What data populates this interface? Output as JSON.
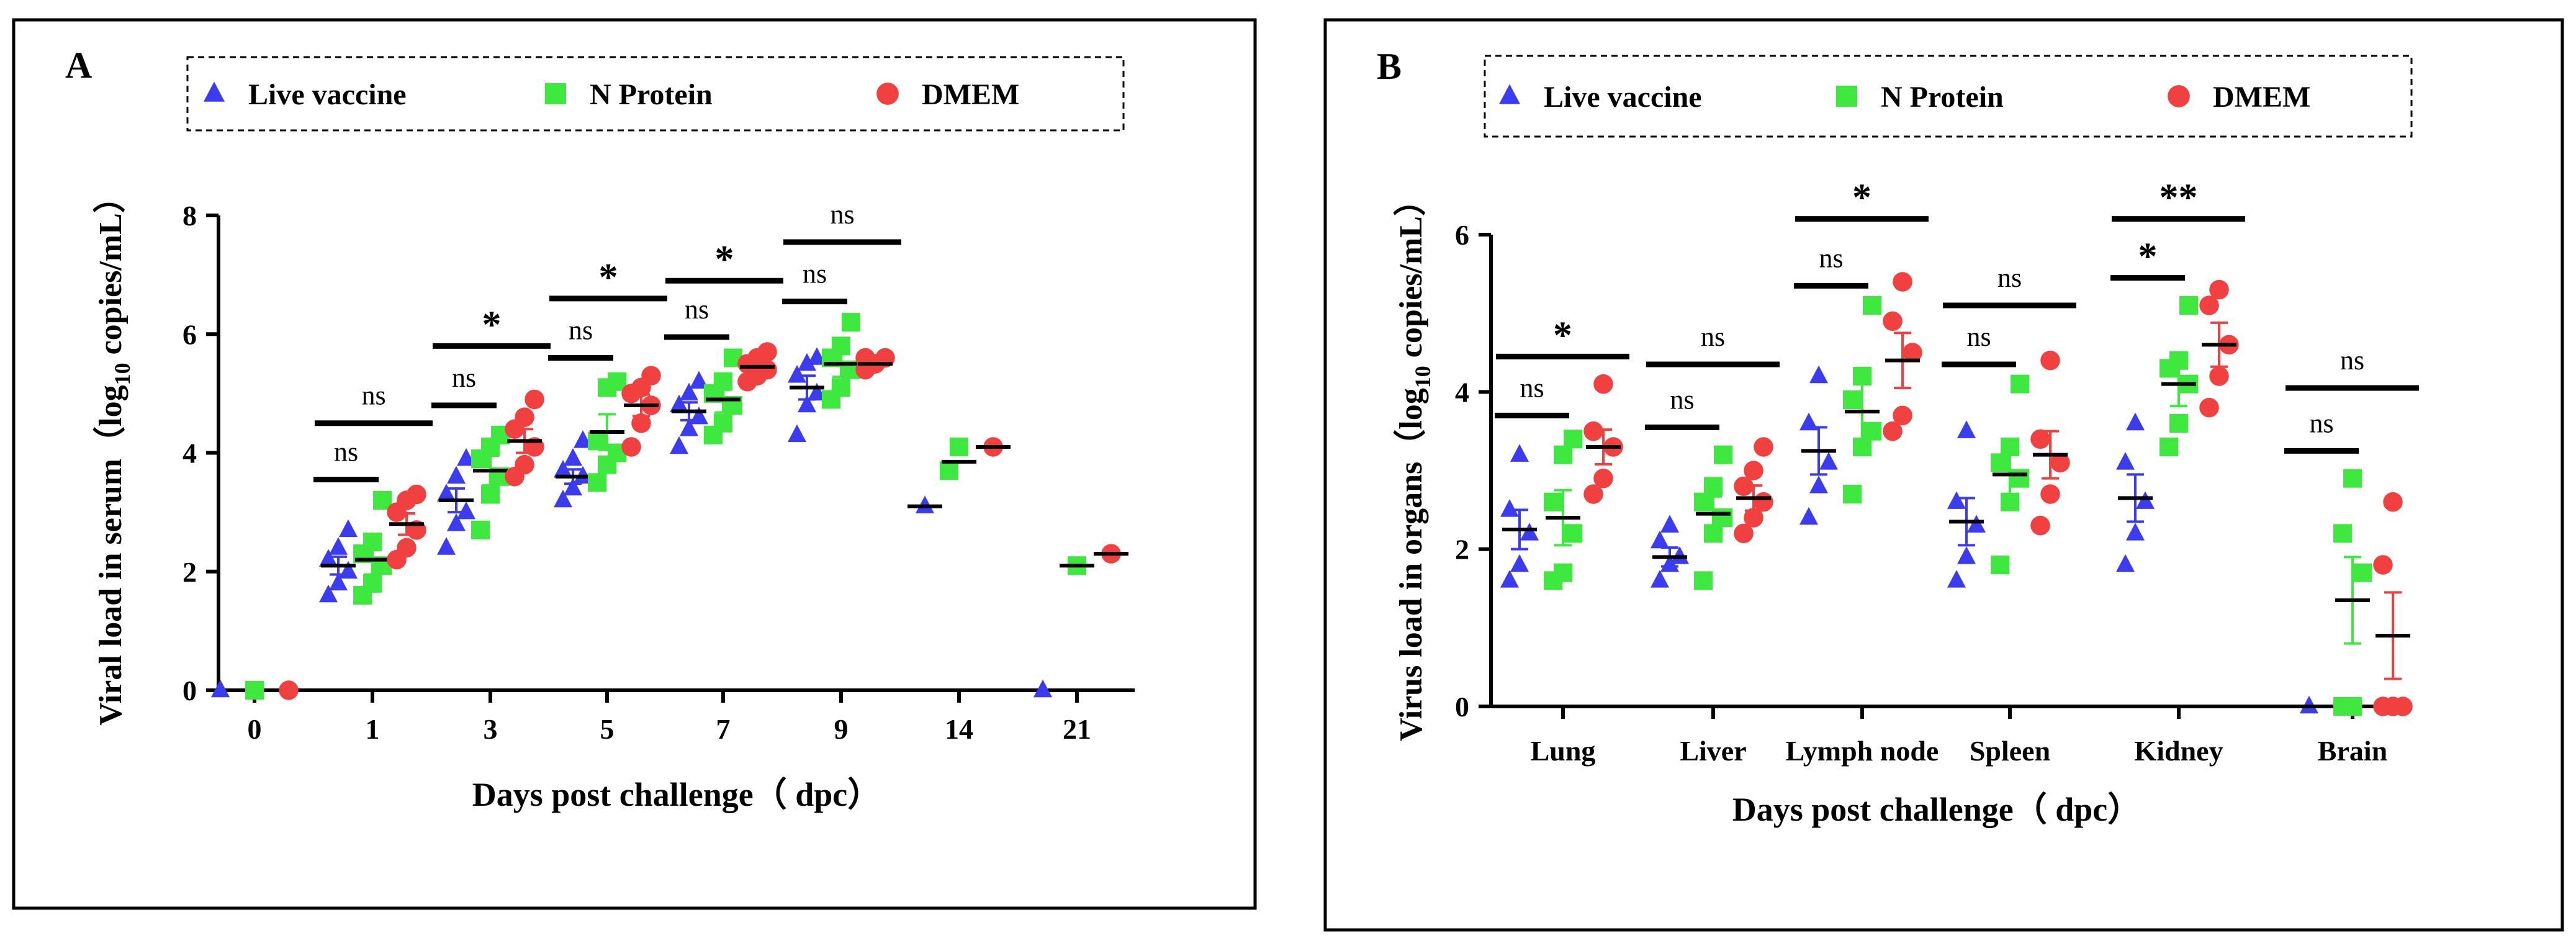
{
  "colors": {
    "live": "#3b3bf0",
    "nprot": "#3fe83f",
    "dmem": "#f04040",
    "axis": "#000000"
  },
  "chart_data": [
    {
      "type": "scatter",
      "panel_label": "A",
      "ylabel_pre": "Viral load in serum（log",
      "ylabel_sub": "10",
      "ylabel_post": " copies/mL）",
      "xlabel": "Days post challenge（ dpc）",
      "ylim": [
        0,
        8
      ],
      "yticks": [
        "0",
        "2",
        "4",
        "6",
        "8"
      ],
      "categories": [
        "0",
        "1",
        "3",
        "5",
        "7",
        "9",
        "14",
        "21"
      ],
      "legend": [
        "Live vaccine",
        "N Protein",
        "DMEM"
      ],
      "series": [
        {
          "name": "Live vaccine",
          "marker": "triangle",
          "color": "#3b3bf0",
          "points": [
            [
              0,
              [
                0
              ]
            ],
            [
              1,
              [
                1.6,
                1.8,
                2.0,
                2.2,
                2.4,
                2.7
              ]
            ],
            [
              2,
              [
                2.4,
                2.8,
                3.0,
                3.3,
                3.6,
                3.9
              ]
            ],
            [
              3,
              [
                3.2,
                3.4,
                3.6,
                3.7,
                3.9,
                4.2
              ]
            ],
            [
              4,
              [
                4.1,
                4.4,
                4.6,
                4.8,
                5.0,
                5.2
              ]
            ],
            [
              5,
              [
                4.3,
                4.8,
                5.0,
                5.3,
                5.5,
                5.6
              ]
            ],
            [
              6,
              [
                3.1
              ]
            ],
            [
              7,
              [
                0
              ]
            ]
          ],
          "means": [
            [
              1,
              2.1
            ],
            [
              2,
              3.2
            ],
            [
              3,
              3.6
            ],
            [
              4,
              4.7
            ],
            [
              5,
              5.1
            ],
            [
              6,
              3.1
            ]
          ],
          "sems": [
            [
              1,
              0.15
            ],
            [
              2,
              0.2
            ],
            [
              3,
              0.12
            ],
            [
              4,
              0.15
            ],
            [
              5,
              0.2
            ]
          ]
        },
        {
          "name": "N Protein",
          "marker": "square",
          "color": "#3fe83f",
          "points": [
            [
              0,
              [
                0
              ]
            ],
            [
              1,
              [
                1.6,
                1.8,
                2.1,
                2.3,
                2.5,
                3.2
              ]
            ],
            [
              2,
              [
                2.7,
                3.3,
                3.6,
                3.9,
                4.1,
                4.3
              ]
            ],
            [
              3,
              [
                3.5,
                3.8,
                4.0,
                4.2,
                5.1,
                5.2
              ]
            ],
            [
              4,
              [
                4.3,
                4.5,
                4.8,
                5.0,
                5.2,
                5.6
              ]
            ],
            [
              5,
              [
                4.9,
                5.1,
                5.4,
                5.6,
                5.8,
                6.2
              ]
            ],
            [
              6,
              [
                3.7,
                4.1
              ]
            ],
            [
              7,
              [
                2.1
              ]
            ]
          ],
          "means": [
            [
              1,
              2.2
            ],
            [
              2,
              3.7
            ],
            [
              3,
              4.35
            ],
            [
              4,
              4.9
            ],
            [
              5,
              5.5
            ],
            [
              6,
              3.85
            ],
            [
              7,
              2.1
            ]
          ],
          "sems": [
            [
              1,
              0.25
            ],
            [
              2,
              0.25
            ],
            [
              3,
              0.3
            ],
            [
              4,
              0.22
            ],
            [
              5,
              0.22
            ]
          ]
        },
        {
          "name": "DMEM",
          "marker": "circle",
          "color": "#f04040",
          "points": [
            [
              0,
              [
                0
              ]
            ],
            [
              1,
              [
                2.2,
                2.4,
                2.7,
                3.0,
                3.2,
                3.3
              ]
            ],
            [
              2,
              [
                3.6,
                3.8,
                4.1,
                4.4,
                4.6,
                4.9
              ]
            ],
            [
              3,
              [
                4.1,
                4.5,
                4.8,
                5.0,
                5.1,
                5.3
              ]
            ],
            [
              4,
              [
                5.2,
                5.3,
                5.4,
                5.5,
                5.6,
                5.7
              ]
            ],
            [
              5,
              [
                5.4,
                5.5,
                5.6,
                5.6
              ]
            ],
            [
              6,
              [
                4.1
              ]
            ],
            [
              7,
              [
                2.3
              ]
            ]
          ],
          "means": [
            [
              1,
              2.8
            ],
            [
              2,
              4.2
            ],
            [
              3,
              4.8
            ],
            [
              4,
              5.45
            ],
            [
              5,
              5.5
            ],
            [
              6,
              4.1
            ],
            [
              7,
              2.3
            ]
          ],
          "sems": [
            [
              1,
              0.18
            ],
            [
              2,
              0.2
            ],
            [
              3,
              0.18
            ],
            [
              4,
              0.08
            ],
            [
              5,
              0.05
            ]
          ]
        }
      ],
      "annotations": [
        {
          "cat": 1,
          "from": 0,
          "to": 0,
          "y": 3.55,
          "label": "ns"
        },
        {
          "cat": 1,
          "from": 0,
          "to": 1,
          "y": 4.5,
          "label": "ns"
        },
        {
          "cat": 2,
          "from": 0,
          "to": 0,
          "y": 4.8,
          "label": "ns"
        },
        {
          "cat": 2,
          "from": 0,
          "to": 1,
          "y": 5.8,
          "label": "*"
        },
        {
          "cat": 3,
          "from": 0,
          "to": 0,
          "y": 5.6,
          "label": "ns"
        },
        {
          "cat": 3,
          "from": 0,
          "to": 1,
          "y": 6.6,
          "label": "*"
        },
        {
          "cat": 4,
          "from": 0,
          "to": 0,
          "y": 5.95,
          "label": "ns"
        },
        {
          "cat": 4,
          "from": 0,
          "to": 1,
          "y": 6.9,
          "label": "*"
        },
        {
          "cat": 5,
          "from": 0,
          "to": 0,
          "y": 6.55,
          "label": "ns"
        },
        {
          "cat": 5,
          "from": 0,
          "to": 1,
          "y": 7.55,
          "label": "ns"
        }
      ]
    },
    {
      "type": "scatter",
      "panel_label": "B",
      "ylabel_pre": "Virus load in organs（log",
      "ylabel_sub": "10",
      "ylabel_post": " copies/mL）",
      "xlabel": "Days post challenge（ dpc）",
      "ylim": [
        0,
        6
      ],
      "yticks": [
        "0",
        "2",
        "4",
        "6"
      ],
      "categories": [
        "Lung",
        "Liver",
        "Lymph node",
        "Spleen",
        "Kidney",
        "Brain"
      ],
      "legend": [
        "Live vaccine",
        "N Protein",
        "DMEM"
      ],
      "series": [
        {
          "name": "Live vaccine",
          "marker": "triangle",
          "color": "#3b3bf0",
          "points": [
            [
              0,
              [
                1.6,
                1.8,
                2.2,
                2.5,
                3.2
              ]
            ],
            [
              1,
              [
                1.6,
                1.8,
                1.9,
                2.1,
                2.3
              ]
            ],
            [
              2,
              [
                2.4,
                2.8,
                3.1,
                3.6,
                4.2
              ]
            ],
            [
              3,
              [
                1.6,
                1.9,
                2.3,
                2.6,
                3.5
              ]
            ],
            [
              4,
              [
                1.8,
                2.2,
                2.6,
                3.1,
                3.6
              ]
            ],
            [
              5,
              [
                0
              ]
            ]
          ],
          "means": [
            [
              0,
              2.25
            ],
            [
              1,
              1.9
            ],
            [
              2,
              3.25
            ],
            [
              3,
              2.35
            ],
            [
              4,
              2.65
            ],
            [
              5,
              0
            ]
          ],
          "sems": [
            [
              0,
              0.25
            ],
            [
              1,
              0.12
            ],
            [
              2,
              0.3
            ],
            [
              3,
              0.3
            ],
            [
              4,
              0.3
            ]
          ]
        },
        {
          "name": "N Protein",
          "marker": "square",
          "color": "#3fe83f",
          "points": [
            [
              0,
              [
                1.6,
                1.7,
                2.2,
                2.6,
                3.2,
                3.4
              ]
            ],
            [
              1,
              [
                1.6,
                2.2,
                2.4,
                2.6,
                2.8,
                3.2
              ]
            ],
            [
              2,
              [
                2.7,
                3.3,
                3.5,
                3.9,
                4.2,
                5.1
              ]
            ],
            [
              3,
              [
                1.8,
                2.6,
                2.9,
                3.1,
                3.3,
                4.1
              ]
            ],
            [
              4,
              [
                3.3,
                3.6,
                4.1,
                4.3,
                4.4,
                5.1
              ]
            ],
            [
              5,
              [
                0,
                0,
                1.7,
                2.2,
                2.9
              ]
            ]
          ],
          "means": [
            [
              0,
              2.4
            ],
            [
              1,
              2.45
            ],
            [
              2,
              3.75
            ],
            [
              3,
              2.95
            ],
            [
              4,
              4.1
            ],
            [
              5,
              1.35
            ]
          ],
          "sems": [
            [
              0,
              0.35
            ],
            [
              1,
              0.22
            ],
            [
              2,
              0.35
            ],
            [
              3,
              0.3
            ],
            [
              4,
              0.28
            ],
            [
              5,
              0.55
            ]
          ]
        },
        {
          "name": "DMEM",
          "marker": "circle",
          "color": "#f04040",
          "points": [
            [
              0,
              [
                2.7,
                2.9,
                3.3,
                3.5,
                4.1
              ]
            ],
            [
              1,
              [
                2.2,
                2.4,
                2.6,
                2.8,
                3.0,
                3.3
              ]
            ],
            [
              2,
              [
                3.5,
                3.7,
                4.5,
                4.9,
                5.4
              ]
            ],
            [
              3,
              [
                2.3,
                2.7,
                3.1,
                3.4,
                4.4
              ]
            ],
            [
              4,
              [
                3.8,
                4.2,
                4.6,
                5.1,
                5.3
              ]
            ],
            [
              5,
              [
                0,
                0,
                0,
                1.8,
                2.6
              ]
            ]
          ],
          "means": [
            [
              0,
              3.3
            ],
            [
              1,
              2.65
            ],
            [
              2,
              4.4
            ],
            [
              3,
              3.2
            ],
            [
              4,
              4.6
            ],
            [
              5,
              0.9
            ]
          ],
          "sems": [
            [
              0,
              0.22
            ],
            [
              1,
              0.16
            ],
            [
              2,
              0.35
            ],
            [
              3,
              0.3
            ],
            [
              4,
              0.28
            ],
            [
              5,
              0.55
            ]
          ]
        }
      ],
      "annotations": [
        {
          "cat": 0,
          "from": 0,
          "to": 0,
          "y": 3.7,
          "label": "ns"
        },
        {
          "cat": 0,
          "from": 0,
          "to": 1,
          "y": 4.45,
          "label": "*"
        },
        {
          "cat": 1,
          "from": 0,
          "to": 0,
          "y": 3.55,
          "label": "ns"
        },
        {
          "cat": 1,
          "from": 0,
          "to": 1,
          "y": 4.35,
          "label": "ns"
        },
        {
          "cat": 2,
          "from": 0,
          "to": 0,
          "y": 5.35,
          "label": "ns"
        },
        {
          "cat": 2,
          "from": 0,
          "to": 1,
          "y": 6.2,
          "label": "*"
        },
        {
          "cat": 3,
          "from": 0,
          "to": 0,
          "y": 4.35,
          "label": "ns"
        },
        {
          "cat": 3,
          "from": 0,
          "to": 1,
          "y": 5.1,
          "label": "ns"
        },
        {
          "cat": 4,
          "from": 0,
          "to": 0,
          "y": 5.45,
          "label": "*"
        },
        {
          "cat": 4,
          "from": 0,
          "to": 1,
          "y": 6.2,
          "label": "**"
        },
        {
          "cat": 5,
          "from": 0,
          "to": 0,
          "y": 3.25,
          "label": "ns"
        },
        {
          "cat": 5,
          "from": 0,
          "to": 1,
          "y": 4.05,
          "label": "ns"
        }
      ]
    }
  ]
}
